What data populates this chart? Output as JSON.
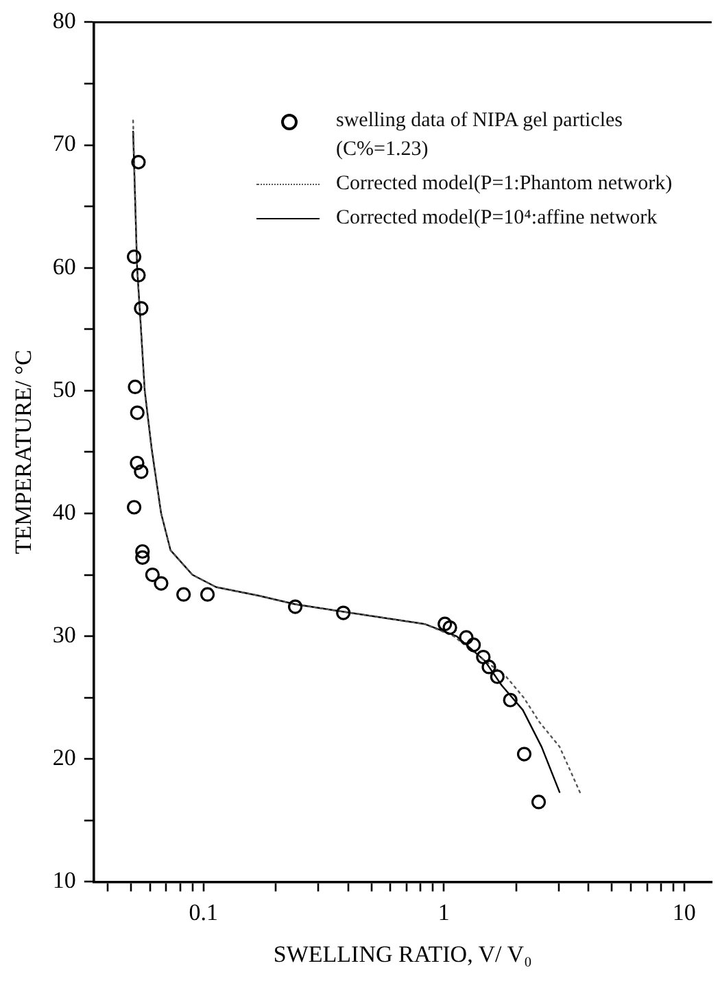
{
  "chart_data": {
    "type": "scatter",
    "xlabel": "SWELLING RATIO, V/ V₀",
    "ylabel": "TEMPERATURE/ °C",
    "log": "x",
    "xlim": [
      0.035,
      13
    ],
    "ylim": [
      10,
      80
    ],
    "xticks": [
      {
        "value": 0.04,
        "label": null
      },
      {
        "value": 0.05,
        "label": null
      },
      {
        "value": 0.06,
        "label": null
      },
      {
        "value": 0.07,
        "label": null
      },
      {
        "value": 0.08,
        "label": null
      },
      {
        "value": 0.09,
        "label": null
      },
      0.1,
      {
        "value": 0.2,
        "label": null
      },
      {
        "value": 0.3,
        "label": null
      },
      {
        "value": 0.4,
        "label": null
      },
      {
        "value": 0.5,
        "label": null
      },
      {
        "value": 0.6,
        "label": null
      },
      {
        "value": 0.7,
        "label": null
      },
      {
        "value": 0.8,
        "label": null
      },
      {
        "value": 0.9,
        "label": null
      },
      1,
      {
        "value": 2,
        "label": null
      },
      {
        "value": 3,
        "label": null
      },
      {
        "value": 4,
        "label": null
      },
      {
        "value": 5,
        "label": null
      },
      {
        "value": 6,
        "label": null
      },
      {
        "value": 7,
        "label": null
      },
      {
        "value": 8,
        "label": null
      },
      {
        "value": 9,
        "label": null
      },
      10
    ],
    "yticks": [
      10,
      {
        "value": 15,
        "label": null
      },
      20,
      {
        "value": 25,
        "label": null
      },
      30,
      {
        "value": 35,
        "label": null
      },
      40,
      {
        "value": 45,
        "label": null
      },
      50,
      {
        "value": 55,
        "label": null
      },
      60,
      {
        "value": 65,
        "label": null
      },
      70,
      {
        "value": 75,
        "label": null
      },
      80
    ],
    "legend": "top right",
    "series": [
      {
        "name": "swelling data of NIPA gel particles (C%=1.23)",
        "marker": "circle",
        "color": "#000000",
        "x": [
          0.0537,
          0.0515,
          0.0537,
          0.0551,
          0.052,
          0.0531,
          0.053,
          0.0551,
          0.0515,
          0.0558,
          0.0558,
          0.0614,
          0.0667,
          0.0827,
          0.104,
          0.241,
          0.382,
          1.01,
          1.06,
          1.24,
          1.33,
          1.46,
          1.54,
          1.67,
          1.89,
          2.16,
          2.48
        ],
        "values": [
          68.6,
          60.9,
          59.4,
          56.7,
          50.3,
          48.2,
          44.1,
          43.4,
          40.5,
          36.9,
          36.4,
          35.0,
          34.3,
          33.4,
          33.4,
          32.4,
          31.9,
          31.0,
          30.7,
          29.9,
          29.3,
          28.3,
          27.5,
          26.7,
          24.8,
          20.4,
          16.5
        ]
      },
      {
        "name": "Corrected model(P=1:Phantom network)",
        "type": "line",
        "line_style": "dotted",
        "color": "#555555",
        "x": [
          0.051,
          0.053,
          0.057,
          0.061,
          0.0667,
          0.073,
          0.09,
          0.113,
          0.17,
          0.241,
          0.38,
          0.83,
          1.1,
          1.48,
          1.8,
          2.15,
          2.5,
          3.03,
          3.72
        ],
        "values": [
          72.0,
          60,
          50,
          45,
          40,
          37,
          35,
          34,
          33.3,
          32.6,
          32,
          31,
          30,
          28,
          26.8,
          25,
          23,
          21,
          17.1
        ]
      },
      {
        "name": "Corrected model(P=10⁴:affine network",
        "type": "line",
        "line_style": "solid",
        "color": "#000000",
        "x": [
          0.051,
          0.053,
          0.055,
          0.057,
          0.061,
          0.0667,
          0.073,
          0.09,
          0.113,
          0.17,
          0.241,
          0.38,
          0.83,
          1.13,
          1.48,
          1.74,
          2.13,
          2.55,
          3.03
        ],
        "values": [
          71.1,
          60,
          55,
          50,
          45.2,
          40,
          37,
          35,
          34,
          33.3,
          32.6,
          32,
          31,
          30,
          28,
          26,
          24,
          21,
          17.3
        ]
      }
    ]
  }
}
